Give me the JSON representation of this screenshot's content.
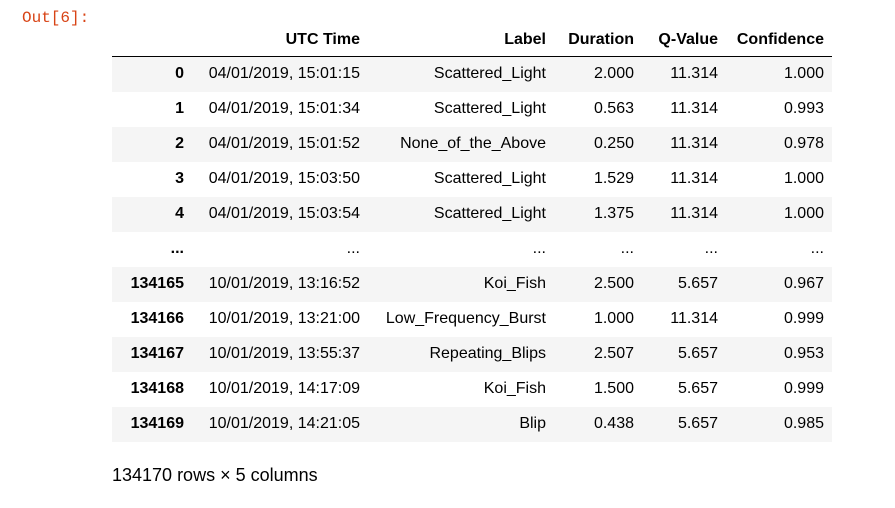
{
  "cell": {
    "prompt": "Out[6]:"
  },
  "dataframe": {
    "columns": [
      "",
      "UTC Time",
      "Label",
      "Duration",
      "Q-Value",
      "Confidence"
    ],
    "rows": [
      {
        "index": "0",
        "utc_time": "04/01/2019, 15:01:15",
        "label": "Scattered_Light",
        "duration": "2.000",
        "q_value": "11.314",
        "confidence": "1.000"
      },
      {
        "index": "1",
        "utc_time": "04/01/2019, 15:01:34",
        "label": "Scattered_Light",
        "duration": "0.563",
        "q_value": "11.314",
        "confidence": "0.993"
      },
      {
        "index": "2",
        "utc_time": "04/01/2019, 15:01:52",
        "label": "None_of_the_Above",
        "duration": "0.250",
        "q_value": "11.314",
        "confidence": "0.978"
      },
      {
        "index": "3",
        "utc_time": "04/01/2019, 15:03:50",
        "label": "Scattered_Light",
        "duration": "1.529",
        "q_value": "11.314",
        "confidence": "1.000"
      },
      {
        "index": "4",
        "utc_time": "04/01/2019, 15:03:54",
        "label": "Scattered_Light",
        "duration": "1.375",
        "q_value": "11.314",
        "confidence": "1.000"
      },
      {
        "index": "...",
        "utc_time": "...",
        "label": "...",
        "duration": "...",
        "q_value": "...",
        "confidence": "..."
      },
      {
        "index": "134165",
        "utc_time": "10/01/2019, 13:16:52",
        "label": "Koi_Fish",
        "duration": "2.500",
        "q_value": "5.657",
        "confidence": "0.967"
      },
      {
        "index": "134166",
        "utc_time": "10/01/2019, 13:21:00",
        "label": "Low_Frequency_Burst",
        "duration": "1.000",
        "q_value": "11.314",
        "confidence": "0.999"
      },
      {
        "index": "134167",
        "utc_time": "10/01/2019, 13:55:37",
        "label": "Repeating_Blips",
        "duration": "2.507",
        "q_value": "5.657",
        "confidence": "0.953"
      },
      {
        "index": "134168",
        "utc_time": "10/01/2019, 14:17:09",
        "label": "Koi_Fish",
        "duration": "1.500",
        "q_value": "5.657",
        "confidence": "0.999"
      },
      {
        "index": "134169",
        "utc_time": "10/01/2019, 14:21:05",
        "label": "Blip",
        "duration": "0.438",
        "q_value": "5.657",
        "confidence": "0.985"
      }
    ],
    "shape_text": "134170 rows × 5 columns"
  },
  "colors": {
    "prompt": "#d84315",
    "stripe": "#f5f5f5",
    "text": "#000000"
  }
}
